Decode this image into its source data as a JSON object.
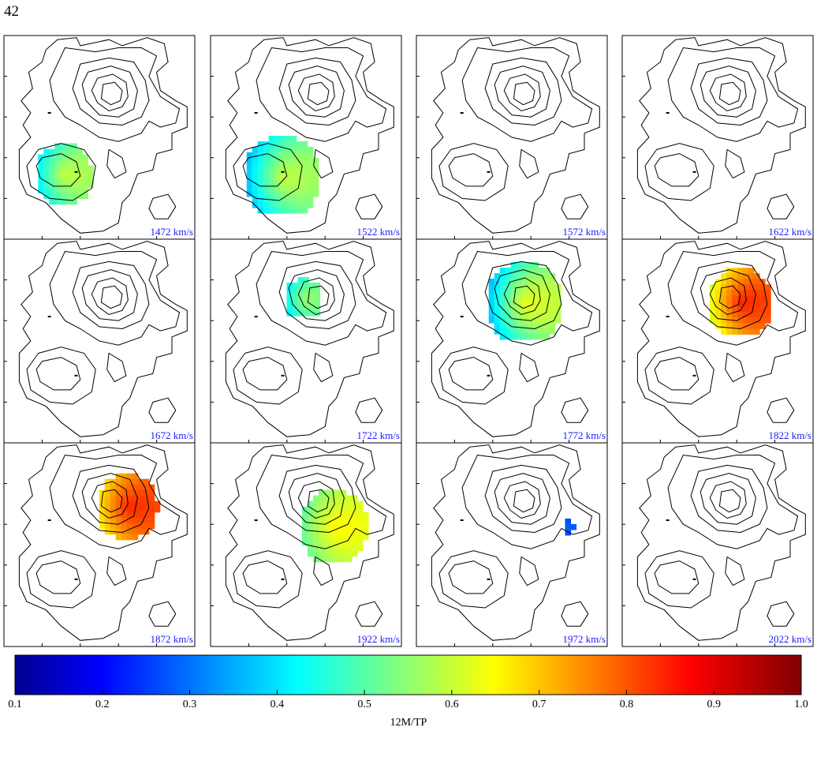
{
  "page_number": "42",
  "chart_data": {
    "type": "heatmap",
    "description_units": "channel maps of 12M/TP ratio over fixed contour outline",
    "panels": [
      {
        "velocity": "1472 km/s",
        "blobs": [
          {
            "cx": 0.3,
            "cy": 0.67,
            "r": 0.15,
            "v_lo": 0.4,
            "v_hi": 0.68
          }
        ]
      },
      {
        "velocity": "1522 km/s",
        "blobs": [
          {
            "cx": 0.36,
            "cy": 0.68,
            "r": 0.2,
            "v_lo": 0.35,
            "v_hi": 0.7
          }
        ]
      },
      {
        "velocity": "1572 km/s",
        "blobs": []
      },
      {
        "velocity": "1622 km/s",
        "blobs": []
      },
      {
        "velocity": "1672 km/s",
        "blobs": []
      },
      {
        "velocity": "1722 km/s",
        "blobs": [
          {
            "cx": 0.47,
            "cy": 0.28,
            "r": 0.1,
            "v_lo": 0.4,
            "v_hi": 0.62
          }
        ]
      },
      {
        "velocity": "1772 km/s",
        "blobs": [
          {
            "cx": 0.55,
            "cy": 0.3,
            "r": 0.2,
            "v_lo": 0.35,
            "v_hi": 0.75
          }
        ]
      },
      {
        "velocity": "1822 km/s",
        "blobs": [
          {
            "cx": 0.6,
            "cy": 0.3,
            "r": 0.17,
            "v_lo": 0.6,
            "v_hi": 0.95
          }
        ]
      },
      {
        "velocity": "1872 km/s",
        "blobs": [
          {
            "cx": 0.63,
            "cy": 0.3,
            "r": 0.16,
            "v_lo": 0.65,
            "v_hi": 0.92
          }
        ]
      },
      {
        "velocity": "1922 km/s",
        "blobs": [
          {
            "cx": 0.63,
            "cy": 0.4,
            "r": 0.18,
            "v_lo": 0.5,
            "v_hi": 0.72
          }
        ]
      },
      {
        "velocity": "1972 km/s",
        "blobs": [
          {
            "cx": 0.78,
            "cy": 0.4,
            "r": 0.03,
            "v_lo": 0.25,
            "v_hi": 0.3
          }
        ]
      },
      {
        "velocity": "2022 km/s",
        "blobs": []
      }
    ],
    "colorbar": {
      "min": 0.1,
      "max": 1.0,
      "ticks": [
        "0.1",
        "0.2",
        "0.3",
        "0.4",
        "0.5",
        "0.6",
        "0.7",
        "0.8",
        "0.9",
        "1.0"
      ],
      "label": "12M/TP",
      "colormap": "jet"
    }
  }
}
